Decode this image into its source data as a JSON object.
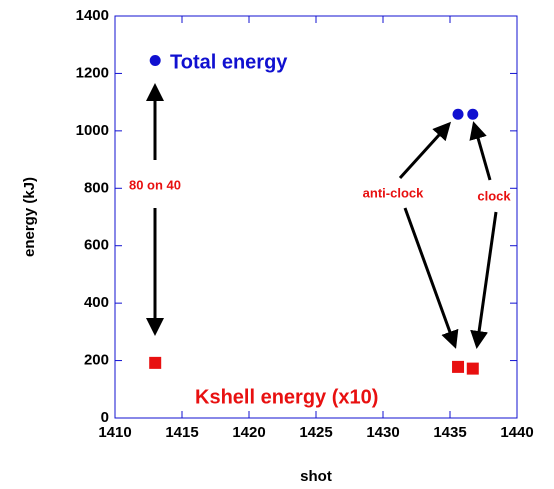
{
  "chart_data": {
    "type": "scatter",
    "x_label": "shot",
    "y_label": "energy (kJ)",
    "xlim": [
      1410,
      1440
    ],
    "xticks": [
      1410,
      1415,
      1420,
      1425,
      1430,
      1435,
      1440
    ],
    "ylim": [
      0,
      1400
    ],
    "yticks": [
      0,
      200,
      400,
      600,
      800,
      1000,
      1200,
      1400
    ],
    "series": [
      {
        "name": "Total energy",
        "color": "#1010d0",
        "marker": "circle",
        "x": [
          1413,
          1435.6,
          1436.7
        ],
        "values": [
          1245,
          1058,
          1058
        ]
      },
      {
        "name": "Kshell energy (x10)",
        "color": "#e81010",
        "marker": "square",
        "x": [
          1413,
          1435.6,
          1436.7
        ],
        "values": [
          192,
          178,
          172
        ]
      }
    ],
    "annotations": [
      "80 on 40",
      "anti-clock",
      "clock"
    ]
  }
}
